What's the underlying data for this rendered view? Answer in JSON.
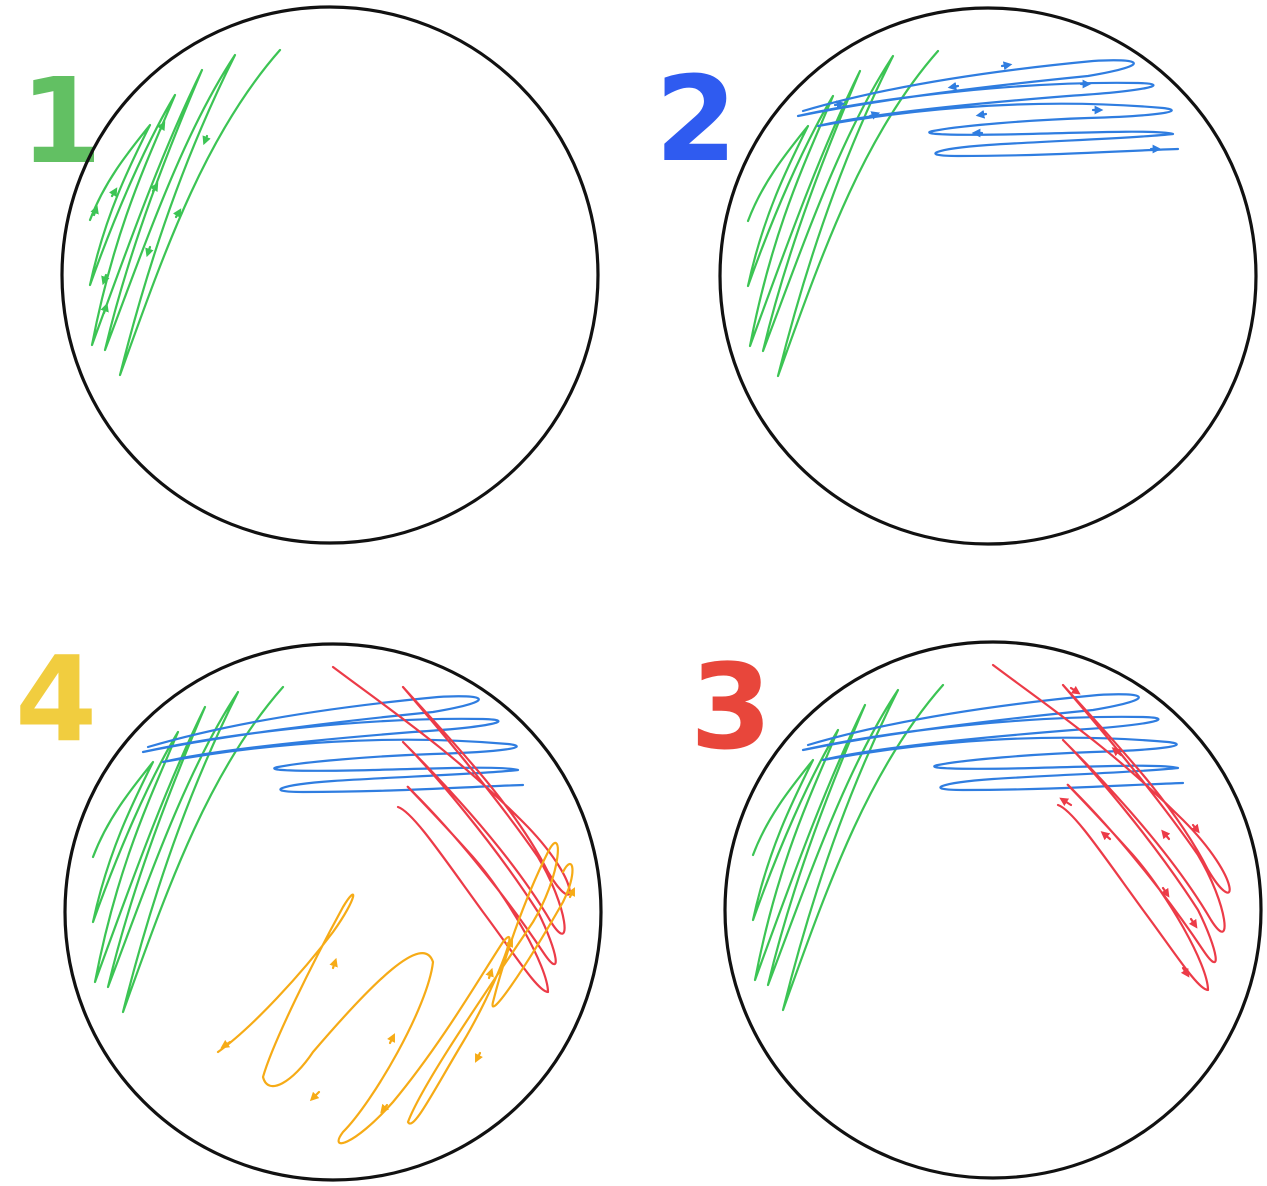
{
  "colors": {
    "background": "#ffffff",
    "plate_outline": "#111111",
    "streak_1": "#3cc454",
    "streak_2": "#2f7de0",
    "streak_3": "#ec3b48",
    "streak_4": "#f6ab16",
    "label_1": "#62c063",
    "label_2": "#2f5bf0",
    "label_3": "#e8463b",
    "label_4": "#f1cd3f"
  },
  "panels": [
    {
      "id": "panel-1",
      "label": "1",
      "label_color": "label_1",
      "streaks": [
        "green"
      ],
      "arrows_on": [
        "green"
      ]
    },
    {
      "id": "panel-2",
      "label": "2",
      "label_color": "label_2",
      "streaks": [
        "green",
        "blue"
      ],
      "arrows_on": [
        "blue"
      ]
    },
    {
      "id": "panel-3",
      "label": "3",
      "label_color": "label_3",
      "streaks": [
        "green",
        "blue",
        "red"
      ],
      "arrows_on": [
        "red"
      ]
    },
    {
      "id": "panel-4",
      "label": "4",
      "label_color": "label_4",
      "streaks": [
        "green",
        "blue",
        "red",
        "orange"
      ],
      "arrows_on": [
        "orange"
      ]
    }
  ]
}
